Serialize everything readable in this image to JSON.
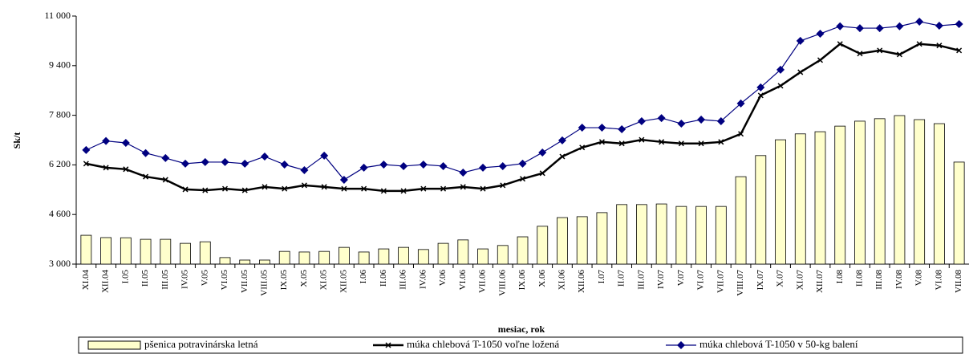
{
  "chart_data": {
    "type": "bar-line",
    "y_label": "Sk/t",
    "x_label": "mesiac, rok",
    "categories": [
      "XI.04",
      "XII.04",
      "I.05",
      "II.05",
      "III.05",
      "IV.05",
      "V.05",
      "VI.05",
      "VII.05",
      "VIII.05",
      "IX.05",
      "X.05",
      "XI.05",
      "XII.05",
      "I.06",
      "II.06",
      "III.06",
      "IV.06",
      "V.06",
      "VI.06",
      "VII.06",
      "VIII.06",
      "IX.06",
      "X.06",
      "XI.06",
      "XII.06",
      "I.07",
      "II.07",
      "III.07",
      "IV.07",
      "V.07",
      "VI.07",
      "VII.07",
      "VIII.07",
      "IX.07",
      "X.07",
      "XI.07",
      "XII.07",
      "I.08",
      "II.08",
      "III.08",
      "IV.08",
      "V.08",
      "VI.08",
      "VII.08"
    ],
    "ylim": [
      3000,
      11000
    ],
    "yticks": [
      {
        "value": 3000,
        "label": "3 000"
      },
      {
        "value": 4600,
        "label": "4 600"
      },
      {
        "value": 6200,
        "label": "6 200"
      },
      {
        "value": 7800,
        "label": "7 800"
      },
      {
        "value": 9400,
        "label": "9 400"
      },
      {
        "value": 11000,
        "label": "11 000"
      }
    ],
    "grid": false,
    "legend": "bottom",
    "series": [
      {
        "name": "pšenica potravinárska letná",
        "kind": "bar",
        "color": "#ffffcc",
        "values": [
          3930,
          3855,
          3850,
          3800,
          3800,
          3670,
          3720,
          3210,
          3130,
          3130,
          3410,
          3390,
          3410,
          3540,
          3390,
          3490,
          3540,
          3470,
          3670,
          3780,
          3490,
          3600,
          3880,
          4220,
          4500,
          4530,
          4660,
          4920,
          4920,
          4940,
          4860,
          4860,
          4860,
          5820,
          6500,
          7010,
          7200,
          7270,
          7450,
          7610,
          7690,
          7790,
          7660,
          7530,
          6290
        ]
      },
      {
        "name": "múka chlebová T-1050 voľne ložená",
        "kind": "line",
        "marker": "x",
        "color": "#000000",
        "values": [
          6240,
          6110,
          6060,
          5820,
          5720,
          5410,
          5380,
          5430,
          5380,
          5490,
          5430,
          5540,
          5490,
          5430,
          5430,
          5360,
          5360,
          5430,
          5430,
          5490,
          5430,
          5540,
          5750,
          5930,
          6470,
          6760,
          6940,
          6890,
          7010,
          6940,
          6890,
          6890,
          6940,
          7200,
          8440,
          8750,
          9190,
          9580,
          10100,
          9790,
          9890,
          9760,
          10100,
          10050,
          9890
        ]
      },
      {
        "name": "múka chlebová T-1050 v 50-kg balení",
        "kind": "line",
        "marker": "diamond",
        "color": "#000080",
        "values": [
          6680,
          6970,
          6910,
          6580,
          6420,
          6240,
          6290,
          6290,
          6240,
          6470,
          6210,
          6030,
          6500,
          5720,
          6110,
          6210,
          6160,
          6210,
          6160,
          5950,
          6110,
          6160,
          6240,
          6600,
          6990,
          7400,
          7400,
          7350,
          7610,
          7710,
          7530,
          7660,
          7610,
          8180,
          8700,
          9270,
          10200,
          10430,
          10670,
          10610,
          10610,
          10670,
          10820,
          10690,
          10740
        ]
      }
    ]
  }
}
